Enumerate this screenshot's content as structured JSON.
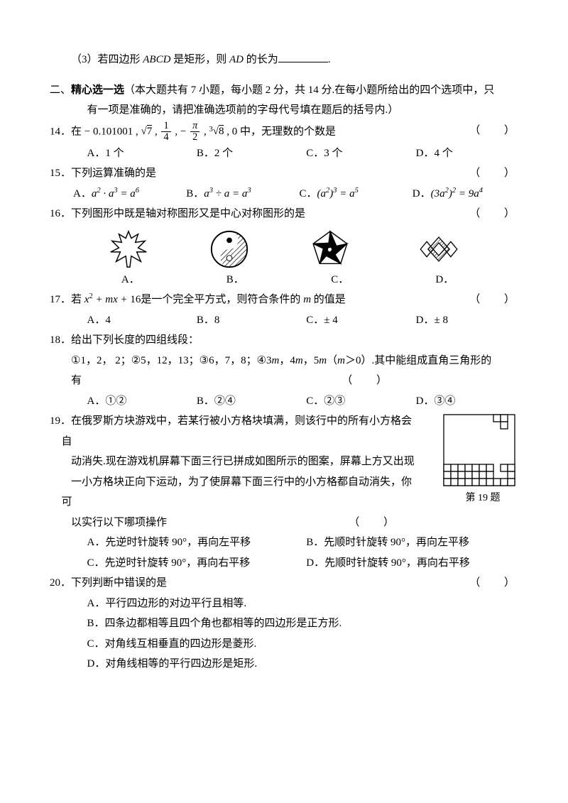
{
  "q13_3": {
    "text_before": "（3）若四边形 ",
    "abcd": "ABCD",
    "text_mid": " 是矩形，则 ",
    "ad": "AD",
    "text_after": " 的长为",
    "period": "."
  },
  "section2": {
    "label": "二、",
    "title": "精心选一选",
    "desc1": "（本大题共有 7 小题，每小题 2 分，共 14 分.在每小题所给出的四个选项中，只",
    "desc2": "有一项是准确的，请把准确选项前的字母代号填在题后的括号内.）"
  },
  "q14": {
    "stem1": "14．在 ",
    "vals": "− 0.101001 ,",
    "sqrt7": "√7",
    "comma1": " ,   ",
    "frac1_num": "1",
    "frac1_den": "4",
    "comma2": " , − ",
    "frac2_num": "π",
    "frac2_den": "2",
    "comma3": "   , ",
    "cbrt8": "∛8",
    "tail": " , 0 中，无理数的个数是",
    "optA": "A．1 个",
    "optB": "B．2 个",
    "optC": "C．3 个",
    "optD": "D．4 个"
  },
  "q15": {
    "stem": "15．下列运算准确的是",
    "optA": "A．a² · a³ = a⁶",
    "optB": "B．a³ ÷ a = a³",
    "optC": "C．(a²)³ = a⁵",
    "optD": "D．(3a²)² = 9a⁴"
  },
  "q16": {
    "stem": "16．下列图形中既是轴对称图形又是中心对称图形的是",
    "labA": "A．",
    "labB": "B．",
    "labC": "C．",
    "labD": "D．",
    "shapes": {
      "leaf_color": "#000000",
      "yy_color": "#000000",
      "pent_color": "#000000",
      "diam_color": "#000000"
    }
  },
  "q17": {
    "stem1": "17．若 ",
    "expr": "x² + mx + 16",
    "stem2": "是一个完全平方式，则符合条件的 ",
    "mvar": "m",
    "stem3": " 的值是",
    "optA": "A．4",
    "optB": "B．8",
    "optC": "C．± 4",
    "optD": "D．± 8"
  },
  "q18": {
    "stem": "18．给出下列长度的四组线段：",
    "line1a": "①1，2， 2；②5，12，13；③6，7，8；④3",
    "m": "m",
    "sep1": "，4",
    "sep2": "，5",
    "paren_l": "（",
    "gt": "＞0",
    "paren_r": "）",
    "line1b": ".其中能组成直角三角形的",
    "line2": "有",
    "optA": "A．①②",
    "optB": "B．②④",
    "optC": "C．②③",
    "optD": "D．③④"
  },
  "q19": {
    "stem": "19．在俄罗斯方块游戏中，若某行被小方格块填满，则该行中的所有小方格会",
    "l0": "自",
    "l1": "动消失.现在游戏机屏幕下面三行已拼成如图所示的图案，屏幕上方又出现",
    "l2": "一小方格块正向下运动，为了使屏幕下面三行中的小方格都自动消失，你",
    "l2b": "可",
    "l3": "以实行以下哪项操作",
    "caption": "第 19 题",
    "optA": "A．先逆时针旋转 90°，再向左平移",
    "optB": "B．先顺时针旋转 90°，再向左平移",
    "optC": "C．先逆时针旋转 90°，再向右平移",
    "optD": "D．先顺时针旋转 90°，再向右平移",
    "grid": {
      "border": "#000000",
      "cols": 10,
      "piece": [
        [
          7,
          0
        ],
        [
          8,
          0
        ],
        [
          8,
          1
        ]
      ],
      "bottom_rows": [
        [
          1,
          1,
          1,
          1,
          1,
          1,
          1,
          0,
          1,
          1
        ],
        [
          1,
          1,
          1,
          1,
          1,
          1,
          1,
          0,
          0,
          1
        ],
        [
          1,
          1,
          1,
          1,
          1,
          1,
          1,
          1,
          1,
          1
        ]
      ]
    }
  },
  "q20": {
    "stem": "20．下列判断中错误的是",
    "optA": "A．平行四边形的对边平行且相等.",
    "optB": "B．四条边都相等且四个角也都相等的四边形是正方形.",
    "optC": "C．对角线互相垂直的四边形是菱形.",
    "optD": "D．对角线相等的平行四边形是矩形."
  },
  "bracket": "（    ）"
}
